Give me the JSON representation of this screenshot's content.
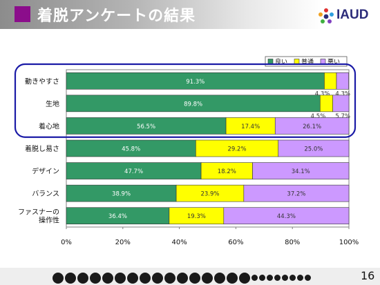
{
  "header": {
    "title": "着脱アンケートの結果",
    "logo_text": "IAUD"
  },
  "footer": {
    "page_number": "16"
  },
  "chart_data": {
    "type": "bar",
    "orientation": "horizontal",
    "stacked": true,
    "categories": [
      "動きやすさ",
      "生地",
      "着心地",
      "着脱し易さ",
      "デザイン",
      "バランス",
      "ファスナーの操作性"
    ],
    "category_lines": [
      [
        "動きやすさ"
      ],
      [
        "生地"
      ],
      [
        "着心地"
      ],
      [
        "着脱し易さ"
      ],
      [
        "デザイン"
      ],
      [
        "バランス"
      ],
      [
        "ファスナーの",
        "操作性"
      ]
    ],
    "series": [
      {
        "name": "良い",
        "color": "#339966",
        "values": [
          91.3,
          89.8,
          56.5,
          45.8,
          47.7,
          38.9,
          36.4
        ],
        "labels": [
          "91.3%",
          "89.8%",
          "56.5%",
          "45.8%",
          "47.7%",
          "38.9%",
          "36.4%"
        ]
      },
      {
        "name": "普通",
        "color": "#ffff00",
        "values": [
          4.3,
          4.5,
          17.4,
          29.2,
          18.2,
          23.9,
          19.3
        ],
        "labels": [
          "4.3%",
          "4.5%",
          "17.4%",
          "29.2%",
          "18.2%",
          "23.9%",
          "19.3%"
        ]
      },
      {
        "name": "悪い",
        "color": "#cc99ff",
        "values": [
          4.3,
          5.7,
          26.1,
          25.0,
          34.1,
          37.2,
          44.3
        ],
        "labels": [
          "4.3%",
          "5.7%",
          "26.1%",
          "25.0%",
          "34.1%",
          "37.2%",
          "44.3%"
        ]
      }
    ],
    "xlim": [
      0,
      100
    ],
    "xticks": [
      "0%",
      "20%",
      "40%",
      "60%",
      "80%",
      "100%"
    ],
    "legend_position": "top-right",
    "highlight_categories": [
      "動きやすさ",
      "生地",
      "着心地"
    ],
    "highlight_color": "#1a1aa6"
  }
}
